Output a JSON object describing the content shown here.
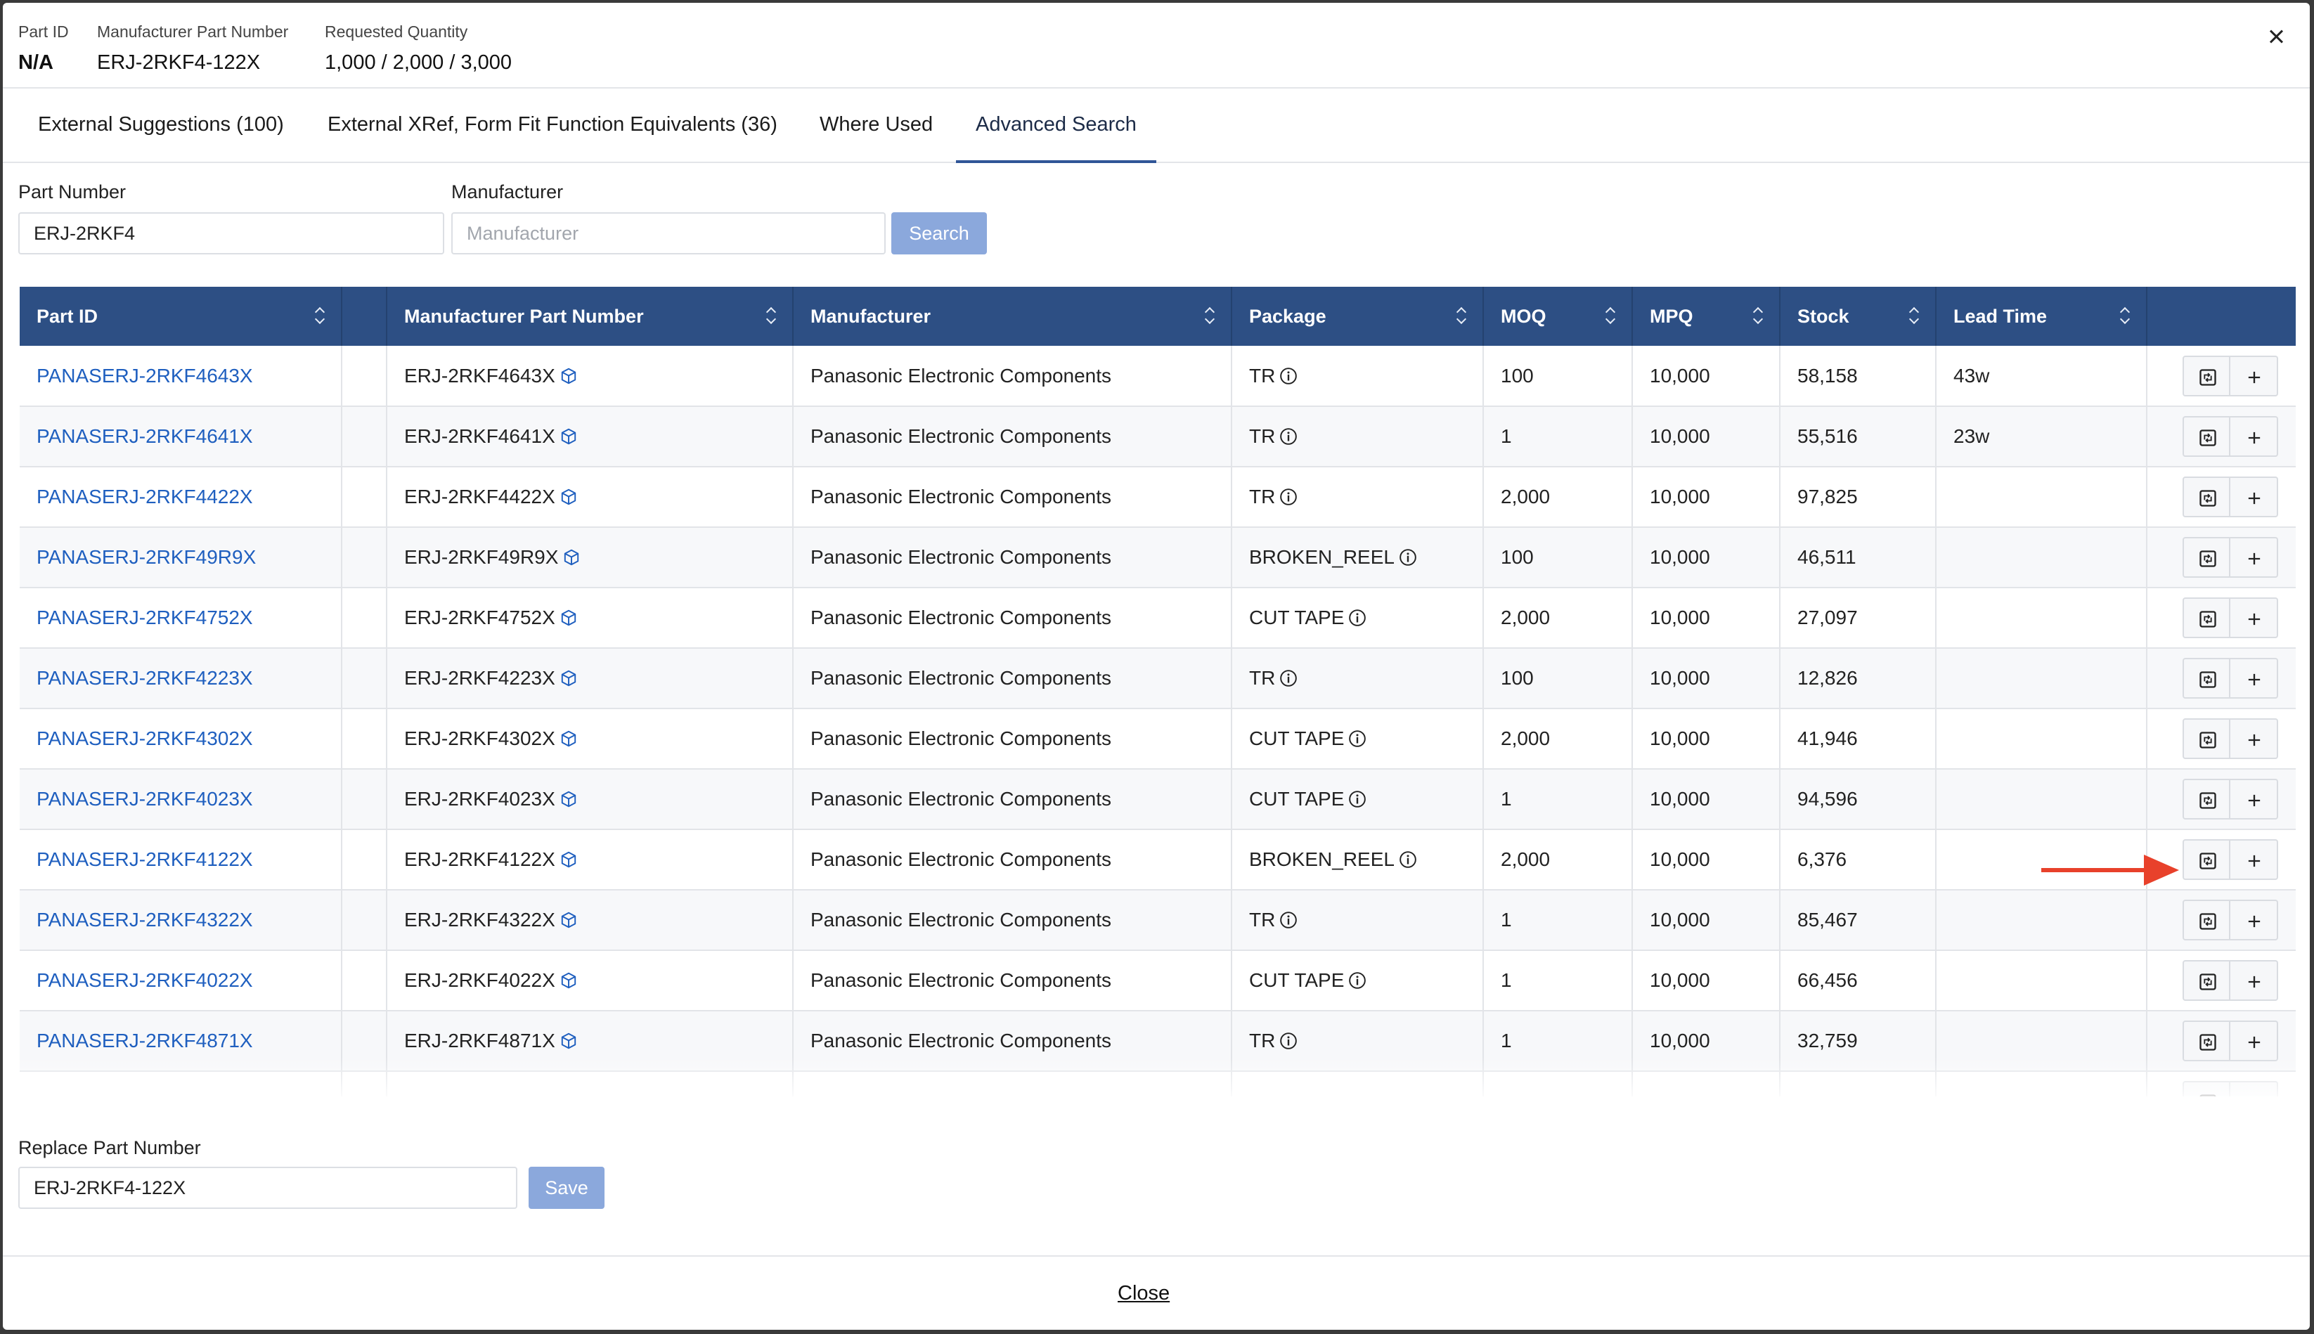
{
  "header": {
    "part_id_label": "Part ID",
    "part_id_value": "N/A",
    "mpn_label": "Manufacturer Part Number",
    "mpn_value": "ERJ-2RKF4-122X",
    "qty_label": "Requested Quantity",
    "qty_value": "1,000 / 2,000 / 3,000"
  },
  "tabs": [
    {
      "label": "External Suggestions (100)"
    },
    {
      "label": "External XRef, Form Fit Function Equivalents (36)"
    },
    {
      "label": "Where Used"
    },
    {
      "label": "Advanced Search",
      "active": true
    }
  ],
  "search": {
    "part_number_label": "Part Number",
    "part_number_value": "ERJ-2RKF4",
    "manufacturer_label": "Manufacturer",
    "manufacturer_placeholder": "Manufacturer",
    "search_button": "Search"
  },
  "table": {
    "columns": [
      "Part ID",
      "",
      "Manufacturer Part Number",
      "Manufacturer",
      "Package",
      "MOQ",
      "MPQ",
      "Stock",
      "Lead Time",
      ""
    ],
    "rows": [
      {
        "part_id": "PANASERJ-2RKF4643X",
        "mpn": "ERJ-2RKF4643X",
        "manufacturer": "Panasonic Electronic Components",
        "package": "TR",
        "moq": "100",
        "mpq": "10,000",
        "stock": "58,158",
        "lead_time": "43w"
      },
      {
        "part_id": "PANASERJ-2RKF4641X",
        "mpn": "ERJ-2RKF4641X",
        "manufacturer": "Panasonic Electronic Components",
        "package": "TR",
        "moq": "1",
        "mpq": "10,000",
        "stock": "55,516",
        "lead_time": "23w"
      },
      {
        "part_id": "PANASERJ-2RKF4422X",
        "mpn": "ERJ-2RKF4422X",
        "manufacturer": "Panasonic Electronic Components",
        "package": "TR",
        "moq": "2,000",
        "mpq": "10,000",
        "stock": "97,825",
        "lead_time": ""
      },
      {
        "part_id": "PANASERJ-2RKF49R9X",
        "mpn": "ERJ-2RKF49R9X",
        "manufacturer": "Panasonic Electronic Components",
        "package": "BROKEN_REEL",
        "moq": "100",
        "mpq": "10,000",
        "stock": "46,511",
        "lead_time": ""
      },
      {
        "part_id": "PANASERJ-2RKF4752X",
        "mpn": "ERJ-2RKF4752X",
        "manufacturer": "Panasonic Electronic Components",
        "package": "CUT TAPE",
        "moq": "2,000",
        "mpq": "10,000",
        "stock": "27,097",
        "lead_time": ""
      },
      {
        "part_id": "PANASERJ-2RKF4223X",
        "mpn": "ERJ-2RKF4223X",
        "manufacturer": "Panasonic Electronic Components",
        "package": "TR",
        "moq": "100",
        "mpq": "10,000",
        "stock": "12,826",
        "lead_time": ""
      },
      {
        "part_id": "PANASERJ-2RKF4302X",
        "mpn": "ERJ-2RKF4302X",
        "manufacturer": "Panasonic Electronic Components",
        "package": "CUT TAPE",
        "moq": "2,000",
        "mpq": "10,000",
        "stock": "41,946",
        "lead_time": ""
      },
      {
        "part_id": "PANASERJ-2RKF4023X",
        "mpn": "ERJ-2RKF4023X",
        "manufacturer": "Panasonic Electronic Components",
        "package": "CUT TAPE",
        "moq": "1",
        "mpq": "10,000",
        "stock": "94,596",
        "lead_time": ""
      },
      {
        "part_id": "PANASERJ-2RKF4122X",
        "mpn": "ERJ-2RKF4122X",
        "manufacturer": "Panasonic Electronic Components",
        "package": "BROKEN_REEL",
        "moq": "2,000",
        "mpq": "10,000",
        "stock": "6,376",
        "lead_time": ""
      },
      {
        "part_id": "PANASERJ-2RKF4322X",
        "mpn": "ERJ-2RKF4322X",
        "manufacturer": "Panasonic Electronic Components",
        "package": "TR",
        "moq": "1",
        "mpq": "10,000",
        "stock": "85,467",
        "lead_time": ""
      },
      {
        "part_id": "PANASERJ-2RKF4022X",
        "mpn": "ERJ-2RKF4022X",
        "manufacturer": "Panasonic Electronic Components",
        "package": "CUT TAPE",
        "moq": "1",
        "mpq": "10,000",
        "stock": "66,456",
        "lead_time": ""
      },
      {
        "part_id": "PANASERJ-2RKF4871X",
        "mpn": "ERJ-2RKF4871X",
        "manufacturer": "Panasonic Electronic Components",
        "package": "TR",
        "moq": "1",
        "mpq": "10,000",
        "stock": "32,759",
        "lead_time": ""
      }
    ]
  },
  "replace": {
    "label": "Replace Part Number",
    "value": "ERJ-2RKF4-122X",
    "save_button": "Save"
  },
  "footer": {
    "close_label": "Close"
  },
  "colors": {
    "header_bg": "#2d4f84",
    "link": "#1f5fbf",
    "button_disabled": "#8ba8dc",
    "annotation_arrow": "#e8412b"
  }
}
